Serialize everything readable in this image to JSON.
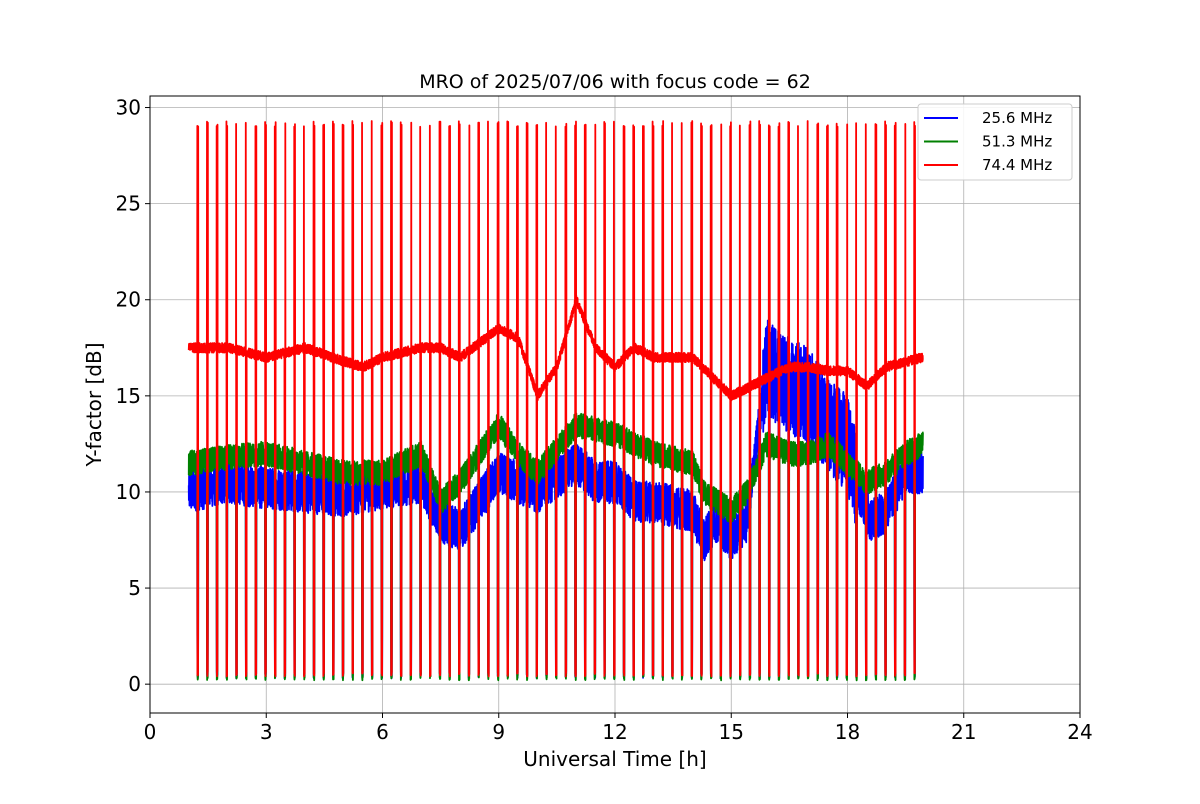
{
  "chart_data": {
    "type": "line",
    "title": "MRO of 2025/07/06 with focus code = 62",
    "xlabel": "Universal Time [h]",
    "ylabel": "Y-factor [dB]",
    "xlim": [
      0,
      24
    ],
    "ylim": [
      -1.5,
      30.6
    ],
    "xticks": [
      0,
      3,
      6,
      9,
      12,
      15,
      18,
      21,
      24
    ],
    "yticks": [
      0,
      5,
      10,
      15,
      20,
      25,
      30
    ],
    "grid": true,
    "legend_position": "top-right",
    "data_range_hours": [
      1.0,
      19.95
    ],
    "series": [
      {
        "name": "25.6 MHz",
        "color": "#0000ff",
        "baseline": [
          [
            1.0,
            10.0
          ],
          [
            2.0,
            10.5
          ],
          [
            3.0,
            10.2
          ],
          [
            4.0,
            10.0
          ],
          [
            5.0,
            9.8
          ],
          [
            6.0,
            10.2
          ],
          [
            7.0,
            10.5
          ],
          [
            7.5,
            8.5
          ],
          [
            8.0,
            8.0
          ],
          [
            8.5,
            9.5
          ],
          [
            9.0,
            11.0
          ],
          [
            9.5,
            10.5
          ],
          [
            10.0,
            10.0
          ],
          [
            11.0,
            11.5
          ],
          [
            11.5,
            10.5
          ],
          [
            12.0,
            10.5
          ],
          [
            12.5,
            9.5
          ],
          [
            13.0,
            9.5
          ],
          [
            14.0,
            9.0
          ],
          [
            14.3,
            7.5
          ],
          [
            14.6,
            8.5
          ],
          [
            15.0,
            7.5
          ],
          [
            15.4,
            8.5
          ],
          [
            15.9,
            16.5
          ],
          [
            16.5,
            15.5
          ],
          [
            17.0,
            15.0
          ],
          [
            17.5,
            13.5
          ],
          [
            18.0,
            12.5
          ],
          [
            18.3,
            10.0
          ],
          [
            18.6,
            8.5
          ],
          [
            19.0,
            9.0
          ],
          [
            19.5,
            11.0
          ],
          [
            19.95,
            11.0
          ]
        ],
        "spread": 2.2,
        "cal_low": 0.3,
        "cal_high": 2.3
      },
      {
        "name": "51.3 MHz",
        "color": "#008000",
        "baseline": [
          [
            1.0,
            11.5
          ],
          [
            2.0,
            11.8
          ],
          [
            3.0,
            12.0
          ],
          [
            4.0,
            11.5
          ],
          [
            5.0,
            11.0
          ],
          [
            6.0,
            11.0
          ],
          [
            7.0,
            12.0
          ],
          [
            7.5,
            9.5
          ],
          [
            8.0,
            10.5
          ],
          [
            8.5,
            12.0
          ],
          [
            9.0,
            13.5
          ],
          [
            9.5,
            12.0
          ],
          [
            10.0,
            11.0
          ],
          [
            11.0,
            13.5
          ],
          [
            12.0,
            13.0
          ],
          [
            12.5,
            12.5
          ],
          [
            13.0,
            12.0
          ],
          [
            14.0,
            11.5
          ],
          [
            14.3,
            10.0
          ],
          [
            15.0,
            9.0
          ],
          [
            15.4,
            10.0
          ],
          [
            15.9,
            12.5
          ],
          [
            16.5,
            12.0
          ],
          [
            17.0,
            12.0
          ],
          [
            17.5,
            12.5
          ],
          [
            18.0,
            11.5
          ],
          [
            18.5,
            10.5
          ],
          [
            19.0,
            11.0
          ],
          [
            19.5,
            12.0
          ],
          [
            19.95,
            12.5
          ]
        ],
        "spread": 1.3,
        "cal_low": 0.2,
        "cal_high": 3.5
      },
      {
        "name": "74.4 MHz",
        "color": "#ff0000",
        "baseline": [
          [
            1.0,
            17.5
          ],
          [
            2.0,
            17.5
          ],
          [
            3.0,
            17.0
          ],
          [
            4.0,
            17.5
          ],
          [
            5.0,
            16.8
          ],
          [
            5.5,
            16.5
          ],
          [
            6.0,
            17.0
          ],
          [
            7.0,
            17.5
          ],
          [
            7.5,
            17.5
          ],
          [
            8.0,
            17.0
          ],
          [
            9.0,
            18.5
          ],
          [
            9.5,
            18.0
          ],
          [
            10.0,
            15.0
          ],
          [
            10.5,
            16.5
          ],
          [
            11.0,
            20.0
          ],
          [
            11.5,
            17.5
          ],
          [
            12.0,
            16.5
          ],
          [
            12.5,
            17.5
          ],
          [
            13.0,
            17.0
          ],
          [
            14.0,
            17.0
          ],
          [
            14.5,
            16.0
          ],
          [
            15.0,
            15.0
          ],
          [
            15.5,
            15.5
          ],
          [
            16.0,
            16.0
          ],
          [
            16.5,
            16.5
          ],
          [
            17.0,
            16.5
          ],
          [
            17.5,
            16.3
          ],
          [
            18.0,
            16.3
          ],
          [
            18.5,
            15.5
          ],
          [
            19.0,
            16.5
          ],
          [
            19.95,
            17.0
          ]
        ],
        "spread": 0.5,
        "cal_low": 0.4,
        "cal_high": 29.0
      }
    ]
  }
}
